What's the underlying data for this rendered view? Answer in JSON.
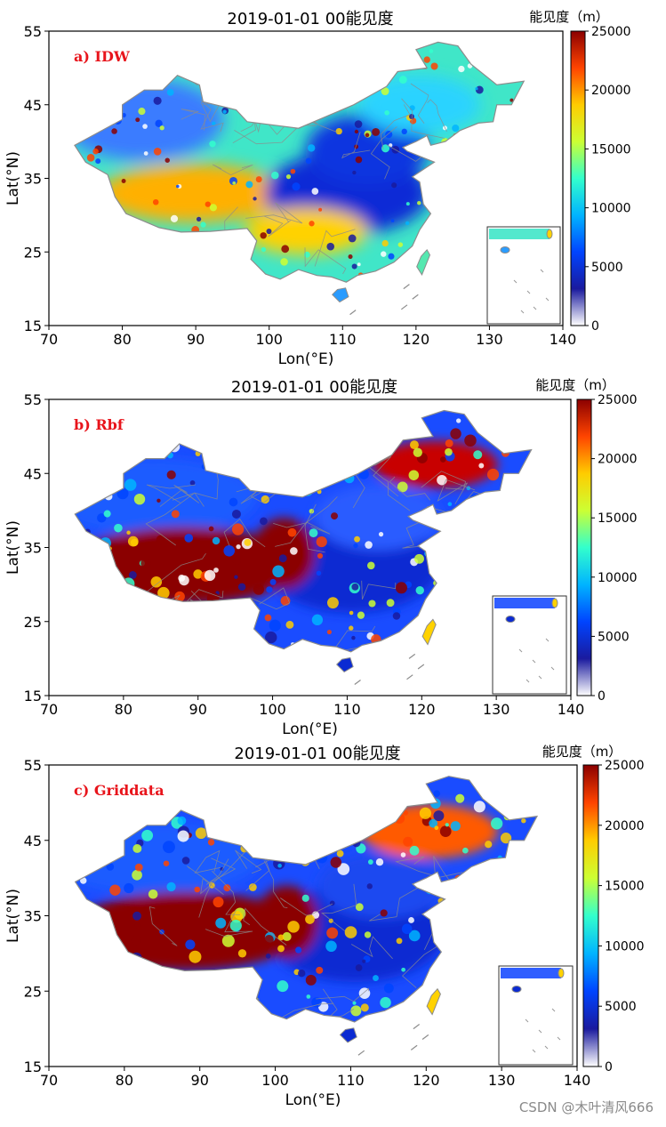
{
  "chart_data": [
    {
      "type": "heatmap",
      "panel_label": "a) IDW",
      "title": "2019-01-01 00能见度",
      "xlabel": "Lon(°E)",
      "ylabel": "Lat(°N)",
      "xlim": [
        70,
        140
      ],
      "ylim": [
        15,
        55
      ],
      "x_ticks": [
        "70",
        "80",
        "90",
        "100",
        "110",
        "120",
        "130",
        "140"
      ],
      "y_ticks": [
        "15",
        "25",
        "35",
        "45",
        "55"
      ],
      "colorbar": {
        "label": "能见度（m）",
        "range": [
          0,
          25000
        ],
        "ticks": [
          "0",
          "5000",
          "10000",
          "15000",
          "20000",
          "25000"
        ]
      },
      "inset": "South China Sea"
    },
    {
      "type": "heatmap",
      "panel_label": "b) Rbf",
      "title": "2019-01-01 00能见度",
      "xlabel": "Lon(°E)",
      "ylabel": "Lat(°N)",
      "xlim": [
        70,
        140
      ],
      "ylim": [
        15,
        55
      ],
      "x_ticks": [
        "70",
        "80",
        "90",
        "100",
        "110",
        "120",
        "130",
        "140"
      ],
      "y_ticks": [
        "15",
        "25",
        "35",
        "45",
        "55"
      ],
      "colorbar": {
        "label": "能见度（m）",
        "range": [
          0,
          25000
        ],
        "ticks": [
          "0",
          "5000",
          "10000",
          "15000",
          "20000",
          "25000"
        ]
      },
      "inset": "South China Sea"
    },
    {
      "type": "heatmap",
      "panel_label": "c) Griddata",
      "title": "2019-01-01 00能见度",
      "xlabel": "Lon(°E)",
      "ylabel": "Lat(°N)",
      "xlim": [
        70,
        140
      ],
      "ylim": [
        15,
        55
      ],
      "x_ticks": [
        "70",
        "80",
        "90",
        "100",
        "110",
        "120",
        "130",
        "140"
      ],
      "y_ticks": [
        "15",
        "25",
        "35",
        "45",
        "55"
      ],
      "colorbar": {
        "label": "能见度（m）",
        "range": [
          0,
          25000
        ],
        "ticks": [
          "0",
          "5000",
          "10000",
          "15000",
          "20000",
          "25000"
        ]
      },
      "inset": "South China Sea"
    }
  ],
  "colors": {
    "label_red": "#e8141b",
    "border_grey": "#8c8c8c",
    "colormap": [
      "#ffffff",
      "#1a1a9e",
      "#0044ff",
      "#00b4ff",
      "#33ffcc",
      "#ccff33",
      "#ffcc00",
      "#ff4400",
      "#8b0000"
    ]
  },
  "watermark": "CSDN @木叶清风666"
}
